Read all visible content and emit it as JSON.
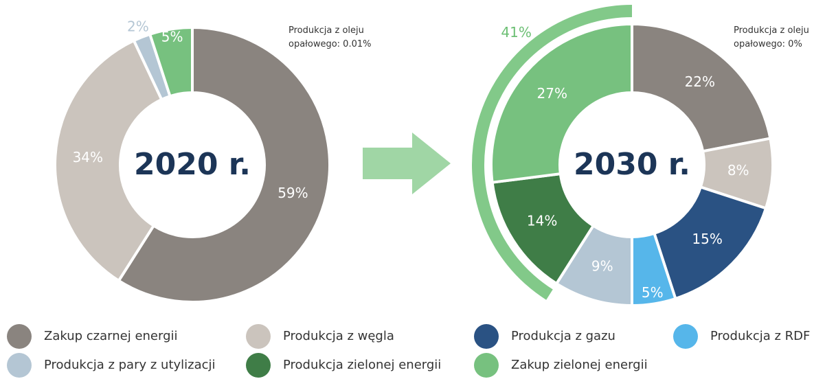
{
  "chart_data": [
    {
      "type": "pie",
      "title": "2020 r.",
      "values": [
        59,
        34,
        2,
        5
      ],
      "value_labels": [
        "59%",
        "34%",
        "2%",
        "5%"
      ],
      "colors": [
        "#8a847f",
        "#cbc4bd",
        "#b4c6d4",
        "#77c17f"
      ],
      "annotation": "Produkcja z oleju opałowego: 0.01%"
    },
    {
      "type": "pie",
      "title": "2030 r.",
      "values": [
        22,
        8,
        15,
        5,
        9,
        14,
        27
      ],
      "value_labels": [
        "22%",
        "8%",
        "15%",
        "5%",
        "9%",
        "14%",
        "27%"
      ],
      "colors": [
        "#8a847f",
        "#cbc4bd",
        "#2a5283",
        "#56b6ea",
        "#b4c6d4",
        "#3f7d47",
        "#77c17f"
      ],
      "outer_arc": {
        "value": 41,
        "label": "41%",
        "color": "#6cbf74"
      },
      "annotation": "Produkcja z oleju opałowego: 0%"
    }
  ],
  "legend": [
    {
      "name": "Zakup czarnej energii",
      "color": "#8a847f"
    },
    {
      "name": "Produkcja z węgla",
      "color": "#cbc4bd"
    },
    {
      "name": "Produkcja z gazu",
      "color": "#2a5283"
    },
    {
      "name": "Produkcja z RDF",
      "color": "#56b6ea"
    },
    {
      "name": "Produkcja z pary z utylizacji",
      "color": "#b4c6d4"
    },
    {
      "name": "Produkcja zielonej energii",
      "color": "#3f7d47"
    },
    {
      "name": "Zakup zielonej energii",
      "color": "#77c17f"
    }
  ]
}
